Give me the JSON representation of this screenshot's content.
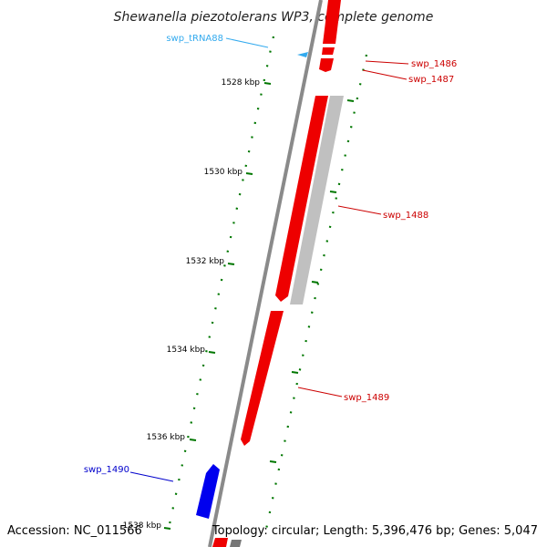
{
  "title": "Shewanella piezotolerans WP3, complete genome",
  "footer": {
    "accession": "Accession: NC_011566",
    "topology": "Topology: circular; Length: 5,396,476 bp; Genes: 5,047"
  },
  "colors": {
    "backbone": "#8a8a8a",
    "forward_gene": "#ff0000",
    "reverse_gene": "#0000ff",
    "pseudo_gene": "#c0c0c0",
    "trna": "#33aaee",
    "tick": "#007700"
  },
  "ticks": [
    "1528 kbp",
    "1530 kbp",
    "1532 kbp",
    "1534 kbp",
    "1536 kbp",
    "1538 kbp"
  ],
  "genes": [
    {
      "label": "swp_tRNA88",
      "kind": "tRNA",
      "strand": "-"
    },
    {
      "label": "swp_1486",
      "kind": "CDS",
      "strand": "+"
    },
    {
      "label": "swp_1487",
      "kind": "CDS",
      "strand": "+"
    },
    {
      "label": "swp_1488",
      "kind": "CDS",
      "strand": "+"
    },
    {
      "label": "swp_1489",
      "kind": "CDS",
      "strand": "+"
    },
    {
      "label": "swp_1490",
      "kind": "CDS",
      "strand": "-"
    }
  ]
}
